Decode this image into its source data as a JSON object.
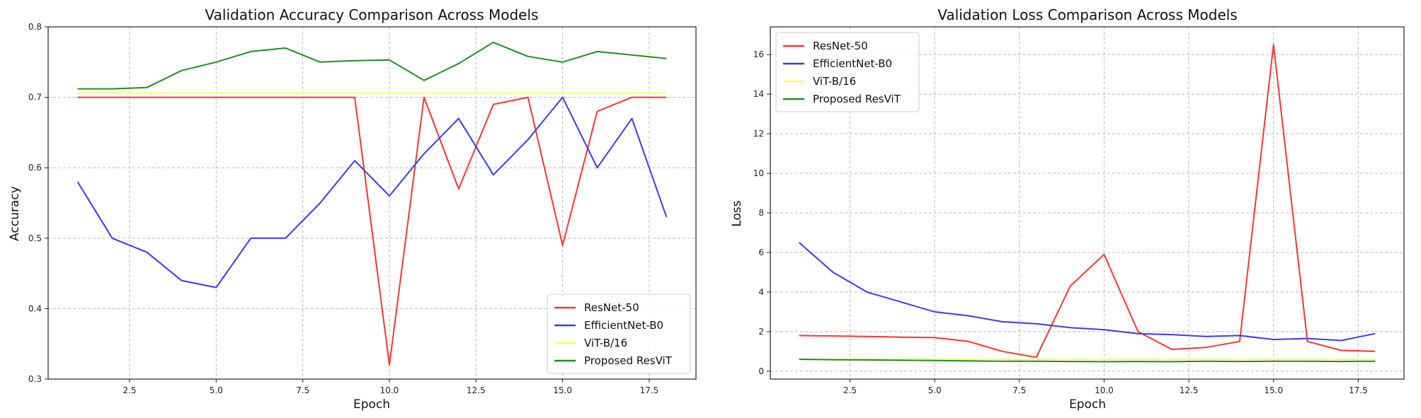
{
  "chart_data": [
    {
      "type": "line",
      "title": "Validation Accuracy Comparison Across Models",
      "xlabel": "Epoch",
      "ylabel": "Accuracy",
      "xlim": [
        0.15,
        18.85
      ],
      "ylim": [
        0.3,
        0.8
      ],
      "xticks": [
        2.5,
        5.0,
        7.5,
        10.0,
        12.5,
        15.0,
        17.5
      ],
      "xtick_labels": [
        "2.5",
        "5.0",
        "7.5",
        "10.0",
        "12.5",
        "15.0",
        "17.5"
      ],
      "yticks": [
        0.3,
        0.4,
        0.5,
        0.6,
        0.7,
        0.8
      ],
      "ytick_labels": [
        "0.3",
        "0.4",
        "0.5",
        "0.6",
        "0.7",
        "0.8"
      ],
      "grid": true,
      "legend_loc": "lower-right",
      "x": [
        1,
        2,
        3,
        4,
        5,
        6,
        7,
        8,
        9,
        10,
        11,
        12,
        13,
        14,
        15,
        16,
        17,
        18
      ],
      "series": [
        {
          "name": "ResNet-50",
          "color": "#ff3333",
          "values": [
            0.7,
            0.7,
            0.7,
            0.7,
            0.7,
            0.7,
            0.7,
            0.7,
            0.7,
            0.32,
            0.7,
            0.57,
            0.69,
            0.7,
            0.49,
            0.68,
            0.7,
            0.7
          ]
        },
        {
          "name": "EfficientNet-B0",
          "color": "#3a3af0",
          "values": [
            0.58,
            0.5,
            0.48,
            0.44,
            0.43,
            0.5,
            0.5,
            0.55,
            0.61,
            0.56,
            0.62,
            0.67,
            0.59,
            0.64,
            0.7,
            0.6,
            0.67,
            0.53
          ]
        },
        {
          "name": "ViT-B/16",
          "color": "#ffff55",
          "values": [
            0.706,
            0.706,
            0.706,
            0.706,
            0.706,
            0.706,
            0.706,
            0.706,
            0.706,
            0.706,
            0.706,
            0.706,
            0.706,
            0.706,
            0.706,
            0.706,
            0.706,
            0.706
          ]
        },
        {
          "name": "Proposed ResViT",
          "color": "#1f8f1f",
          "values": [
            0.712,
            0.712,
            0.714,
            0.738,
            0.75,
            0.765,
            0.77,
            0.75,
            0.752,
            0.753,
            0.724,
            0.748,
            0.778,
            0.758,
            0.75,
            0.765,
            0.76,
            0.755
          ]
        }
      ]
    },
    {
      "type": "line",
      "title": "Validation Loss Comparison Across Models",
      "xlabel": "Epoch",
      "ylabel": "Loss",
      "xlim": [
        0.15,
        18.85
      ],
      "ylim": [
        -0.4,
        17.4
      ],
      "xticks": [
        2.5,
        5.0,
        7.5,
        10.0,
        12.5,
        15.0,
        17.5
      ],
      "xtick_labels": [
        "2.5",
        "5.0",
        "7.5",
        "10.0",
        "12.5",
        "15.0",
        "17.5"
      ],
      "yticks": [
        0,
        2,
        4,
        6,
        8,
        10,
        12,
        14,
        16
      ],
      "ytick_labels": [
        "0",
        "2",
        "4",
        "6",
        "8",
        "10",
        "12",
        "14",
        "16"
      ],
      "grid": true,
      "legend_loc": "upper-left",
      "x": [
        1,
        2,
        3,
        4,
        5,
        6,
        7,
        8,
        9,
        10,
        11,
        12,
        13,
        14,
        15,
        16,
        17,
        18
      ],
      "series": [
        {
          "name": "ResNet-50",
          "color": "#ff3333",
          "values": [
            1.8,
            1.78,
            1.75,
            1.72,
            1.7,
            1.5,
            1.0,
            0.7,
            4.3,
            5.9,
            2.0,
            1.1,
            1.2,
            1.5,
            16.5,
            1.5,
            1.05,
            1.0
          ]
        },
        {
          "name": "EfficientNet-B0",
          "color": "#3a3af0",
          "values": [
            6.5,
            5.0,
            4.0,
            3.5,
            3.0,
            2.8,
            2.5,
            2.4,
            2.2,
            2.1,
            1.9,
            1.85,
            1.75,
            1.8,
            1.6,
            1.65,
            1.55,
            1.9
          ]
        },
        {
          "name": "ViT-B/16",
          "color": "#ffff55",
          "values": [
            0.6,
            0.6,
            0.6,
            0.6,
            0.6,
            0.6,
            0.6,
            0.6,
            0.6,
            0.6,
            0.6,
            0.6,
            0.6,
            0.6,
            0.6,
            0.6,
            0.6,
            0.6
          ]
        },
        {
          "name": "Proposed ResViT",
          "color": "#1f8f1f",
          "values": [
            0.6,
            0.58,
            0.57,
            0.55,
            0.54,
            0.52,
            0.5,
            0.5,
            0.49,
            0.48,
            0.49,
            0.48,
            0.5,
            0.49,
            0.5,
            0.5,
            0.49,
            0.5
          ]
        }
      ]
    }
  ]
}
